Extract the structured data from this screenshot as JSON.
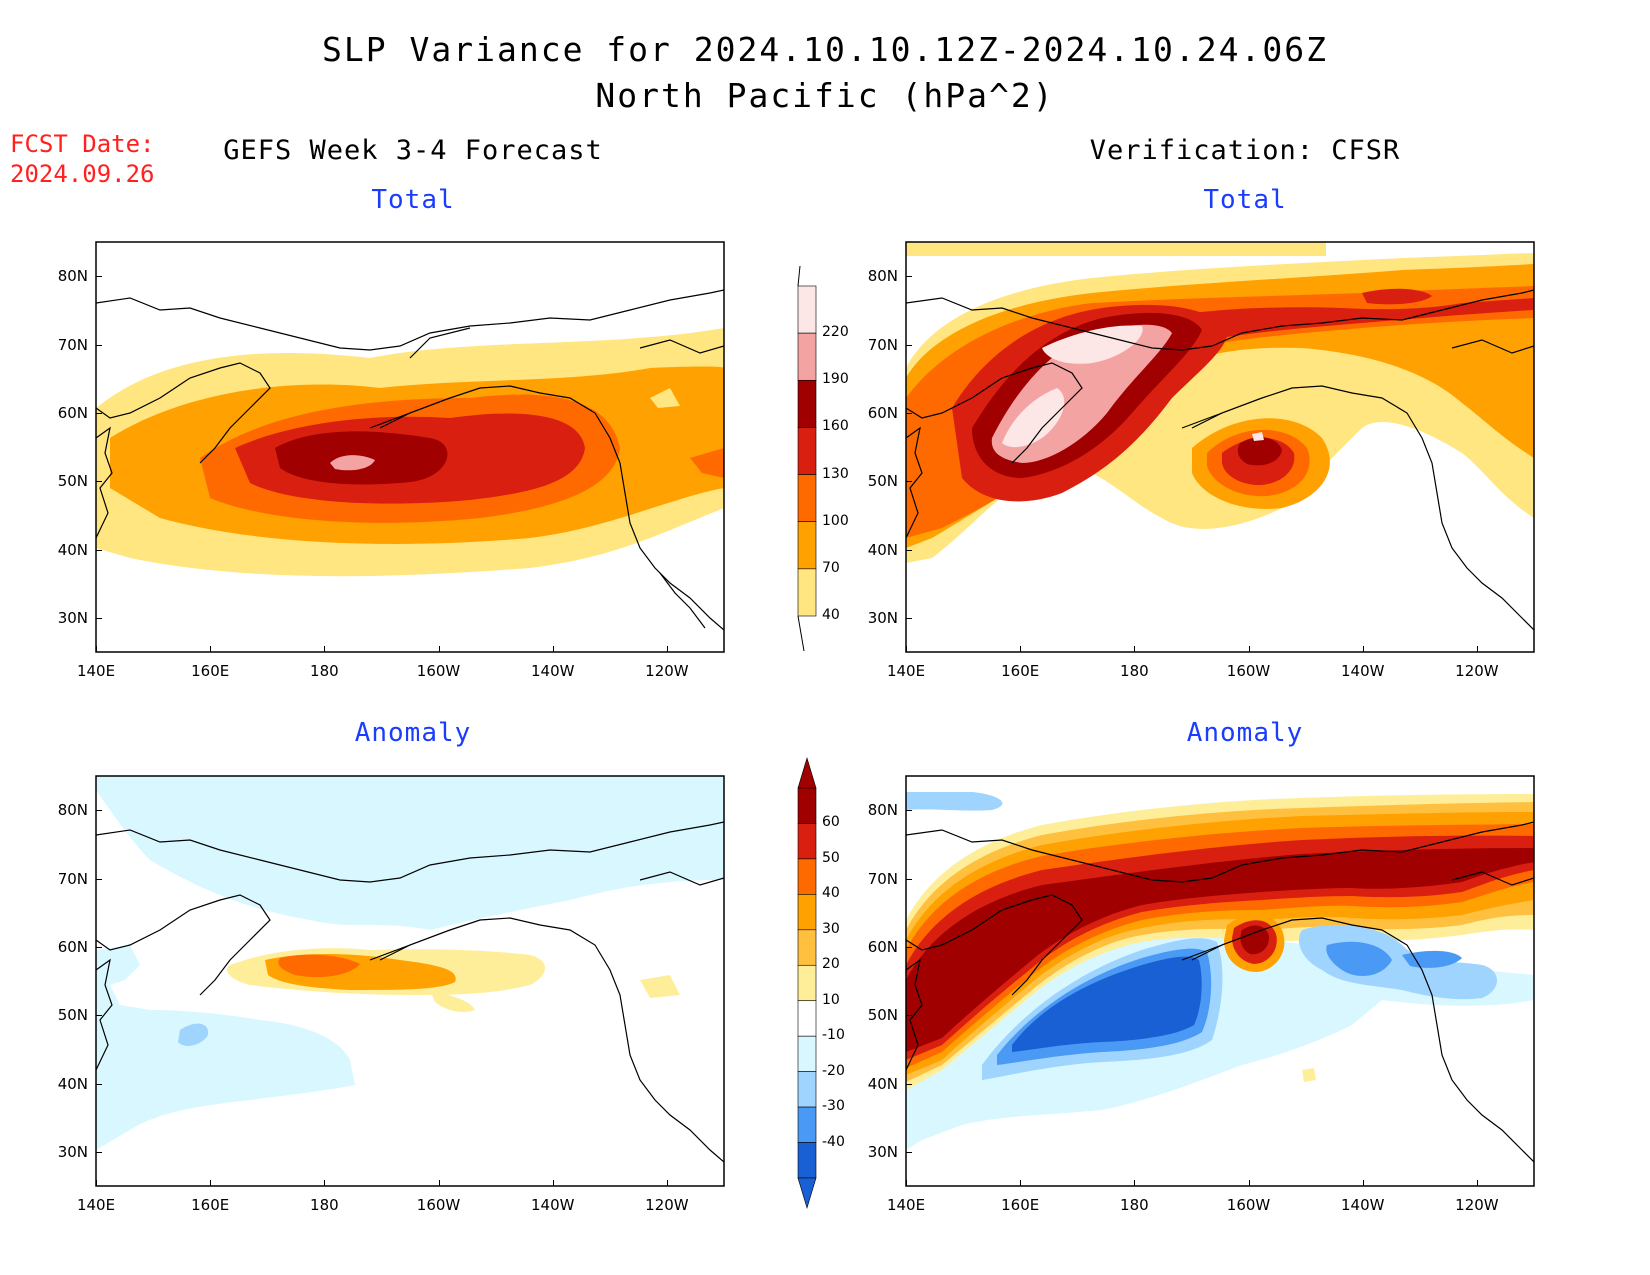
{
  "header": {
    "title_line1": "SLP Variance for 2024.10.10.12Z-2024.10.24.06Z",
    "title_line2": "North Pacific (hPa^2)",
    "fcst_label": "FCST Date:",
    "fcst_date": "2024.09.26"
  },
  "columns": {
    "left_title": "GEFS Week 3-4 Forecast",
    "right_title": "Verification: CFSR"
  },
  "panel_titles": {
    "total": "Total",
    "anomaly": "Anomaly"
  },
  "axes": {
    "lon_ticks": [
      "140E",
      "160E",
      "180",
      "160W",
      "140W",
      "120W"
    ],
    "lat_ticks": [
      "80N",
      "70N",
      "60N",
      "50N",
      "40N",
      "30N"
    ]
  },
  "colorbars": {
    "total": {
      "labels": [
        "220",
        "190",
        "160",
        "130",
        "100",
        "70",
        "40"
      ],
      "colors": [
        "#fde6e6",
        "#f4a3a3",
        "#a00000",
        "#d92010",
        "#ff6a00",
        "#ffa100",
        "#ffe680"
      ]
    },
    "anomaly": {
      "labels": [
        "60",
        "50",
        "40",
        "30",
        "20",
        "10",
        "-10",
        "-20",
        "-30",
        "-40"
      ],
      "colors": [
        "#a00000",
        "#d92010",
        "#ff6a00",
        "#ffa100",
        "#ffc040",
        "#ffee99",
        "#ffffff",
        "#d9f7ff",
        "#9fd4ff",
        "#4a9af5",
        "#1a60d5"
      ]
    }
  },
  "colors": {
    "title_blue": "#1a3cff",
    "fcst_red": "#ff2020"
  }
}
